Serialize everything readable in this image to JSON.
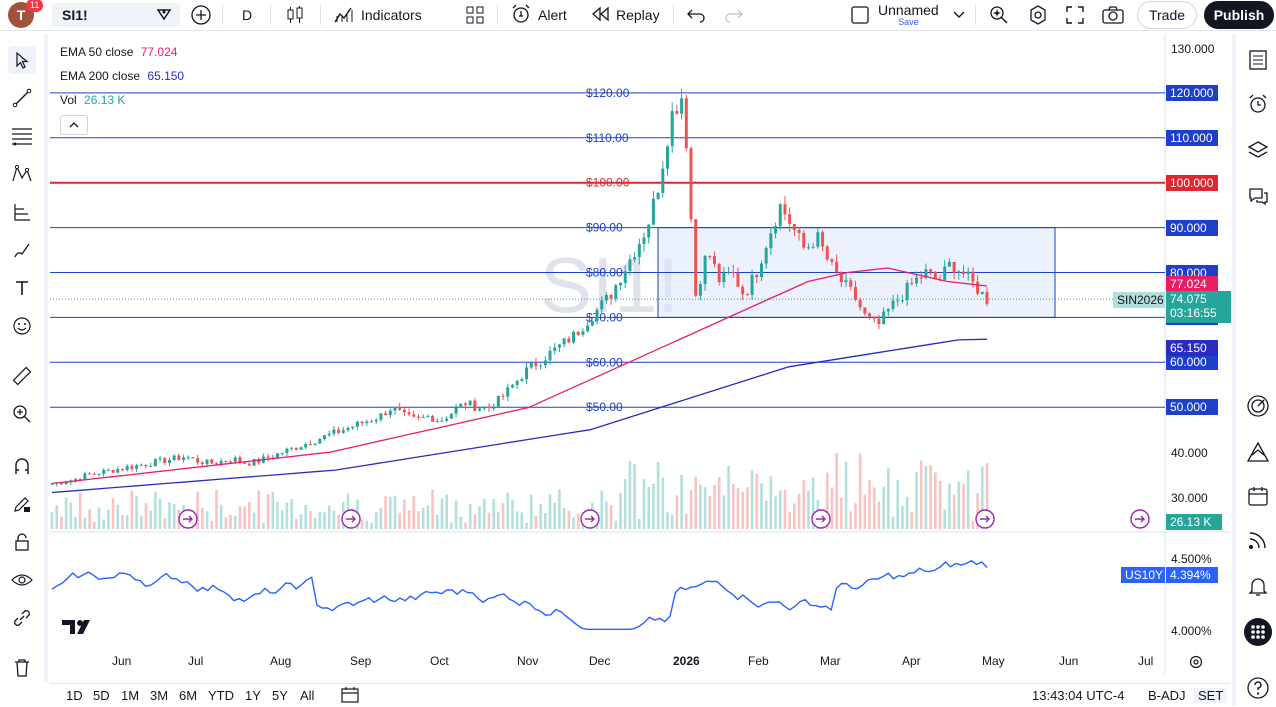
{
  "header": {
    "avatar_letter": "T",
    "notification_count": "11",
    "symbol": "SI1!",
    "interval": "D",
    "indicators_label": "Indicators",
    "alert_label": "Alert",
    "replay_label": "Replay",
    "layout_name": "Unnamed",
    "layout_sub": "Save",
    "trade_label": "Trade",
    "publish_label": "Publish"
  },
  "legend": {
    "ema50_label": "EMA 50 close",
    "ema50_value": "77.024",
    "ema200_label": "EMA 200 close",
    "ema200_value": "65.150",
    "vol_label": "Vol",
    "vol_value": "26.13 K"
  },
  "watermark": "SI1!",
  "price_axis": [
    "130.000",
    "40.000",
    "30.000"
  ],
  "horizontal_lines": [
    {
      "label": "$120.00",
      "tag": "120.000",
      "price": 120,
      "color": "#1e40c8"
    },
    {
      "label": "$110.00",
      "tag": "110.000",
      "price": 110,
      "color": "#1e40c8"
    },
    {
      "label": "$100.00",
      "tag": "100.000",
      "price": 100,
      "color": "#e0262e"
    },
    {
      "label": "$90.00",
      "tag": "90.000",
      "price": 90,
      "color": "#1e40c8"
    },
    {
      "label": "$80.00",
      "tag": "80.000",
      "price": 80,
      "color": "#1e40c8"
    },
    {
      "label": "$70.00",
      "tag": "70.000",
      "price": 70,
      "color": "#1e40c8"
    },
    {
      "label": "$60.00",
      "tag": "60.000",
      "price": 60,
      "color": "#1e40c8"
    },
    {
      "label": "$50.00",
      "tag": "50.000",
      "price": 50,
      "color": "#1e40c8"
    }
  ],
  "price_tags": {
    "ema50": "77.024",
    "symbol_tag": "SIN2026",
    "last_price": "74.075",
    "countdown": "03:16:55",
    "ema200": "65.150",
    "volume": "26.13 K"
  },
  "colors": {
    "ema50": "#e91e63",
    "ema200": "#2a2bbf",
    "up": "#26a69a",
    "down": "#ef5350",
    "box_fill": "#dbe6fb",
    "box_border": "#1e40c8",
    "red_line": "#e0262e",
    "us10y": "#2962ff"
  },
  "us10y": {
    "label": "US10Y",
    "value": "4.394%",
    "axis": [
      "4.500%",
      "4.000%"
    ]
  },
  "time_axis": [
    "Jun",
    "Jul",
    "Aug",
    "Sep",
    "Oct",
    "Nov",
    "Dec",
    "2026",
    "Feb",
    "Mar",
    "Apr",
    "May",
    "Jun",
    "Jul"
  ],
  "bottom": {
    "ranges": [
      "1D",
      "5D",
      "1M",
      "3M",
      "6M",
      "YTD",
      "1Y",
      "5Y",
      "All"
    ],
    "clock": "13:43:04 UTC-4",
    "badj": "B-ADJ",
    "set": "SET"
  },
  "chart_data": {
    "type": "candlestick",
    "title": "SI1!",
    "ylim": [
      25,
      131
    ],
    "series": [
      {
        "name": "EMA 50 close",
        "values_key": "ema50"
      },
      {
        "name": "EMA 200 close",
        "values_key": "ema200"
      }
    ],
    "close_trace": [
      33,
      33.5,
      34,
      35,
      35.5,
      36,
      36.5,
      37,
      37.5,
      38,
      38.5,
      39,
      38,
      37.5,
      38,
      38.5,
      37.5,
      38,
      39,
      40,
      41,
      42,
      43,
      44,
      45,
      46,
      47,
      48,
      50,
      48,
      47,
      48,
      47,
      49,
      51,
      50,
      50,
      52,
      55,
      58,
      60,
      62,
      64,
      66,
      69,
      72,
      75,
      80,
      85,
      90,
      100,
      115,
      120,
      75,
      85,
      78,
      80,
      75,
      80,
      88,
      95,
      90,
      85,
      88,
      82,
      78,
      75,
      70,
      68,
      72,
      75,
      78,
      80,
      78,
      82,
      80,
      77,
      74
    ],
    "ema50": [
      33,
      33.5,
      34,
      34.5,
      35,
      35.5,
      36,
      36.5,
      37,
      37.5,
      38,
      38.5,
      39,
      39.5,
      40,
      41,
      42,
      43,
      44,
      45,
      46,
      47,
      48,
      49,
      50,
      52,
      54,
      56,
      58,
      60,
      62,
      64,
      66,
      68,
      70,
      72,
      74,
      76,
      78,
      79,
      80,
      80.5,
      81,
      80,
      79,
      78,
      77.5,
      77
    ],
    "ema200": [
      31,
      31.5,
      32,
      32.5,
      33,
      33.5,
      34,
      34.5,
      35,
      35.5,
      36,
      37,
      38,
      39,
      40,
      41,
      42,
      43,
      44,
      45,
      47,
      49,
      51,
      53,
      55,
      57,
      59,
      60,
      61,
      62,
      63,
      64,
      65,
      65.15
    ]
  }
}
